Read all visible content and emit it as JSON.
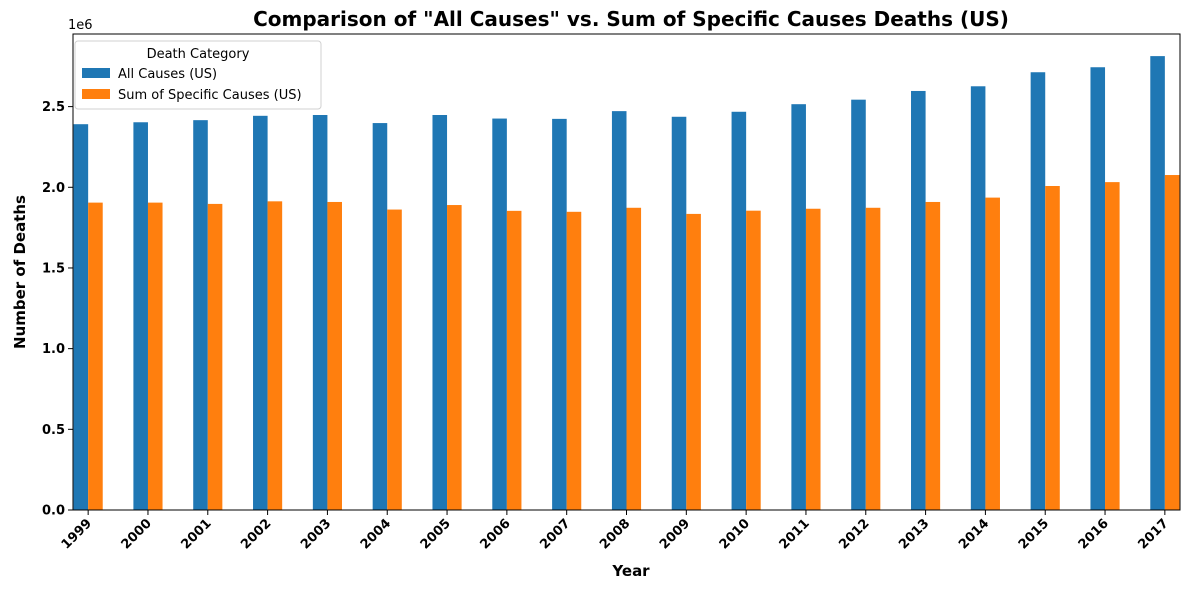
{
  "chart_data": {
    "type": "bar",
    "title": "Comparison of \"All Causes\" vs. Sum of Specific Causes Deaths (US)",
    "xlabel": "Year",
    "ylabel": "Number of Deaths",
    "y_offset_label": "1e6",
    "ylim": [
      0,
      2950000
    ],
    "yticks": [
      0,
      500000,
      1000000,
      1500000,
      2000000,
      2500000
    ],
    "ytick_labels": [
      "0.0",
      "0.5",
      "1.0",
      "1.5",
      "2.0",
      "2.5"
    ],
    "categories": [
      "1999",
      "2000",
      "2001",
      "2002",
      "2003",
      "2004",
      "2005",
      "2006",
      "2007",
      "2008",
      "2009",
      "2010",
      "2011",
      "2012",
      "2013",
      "2014",
      "2015",
      "2016",
      "2017"
    ],
    "series": [
      {
        "name": "All Causes (US)",
        "color": "#1f77b4",
        "values": [
          2391000,
          2403000,
          2416000,
          2443000,
          2448000,
          2398000,
          2448000,
          2426000,
          2424000,
          2472000,
          2437000,
          2468000,
          2515000,
          2543000,
          2597000,
          2626000,
          2713000,
          2744000,
          2813000
        ]
      },
      {
        "name": "Sum of Specific Causes (US)",
        "color": "#ff7f0e",
        "values": [
          1905000,
          1905000,
          1897000,
          1913000,
          1909000,
          1862000,
          1890000,
          1854000,
          1848000,
          1873000,
          1835000,
          1855000,
          1867000,
          1873000,
          1909000,
          1936000,
          2008000,
          2032000,
          2076000
        ]
      }
    ],
    "grid": false,
    "legend": {
      "title": "Death Category",
      "placement": "top-left"
    }
  }
}
